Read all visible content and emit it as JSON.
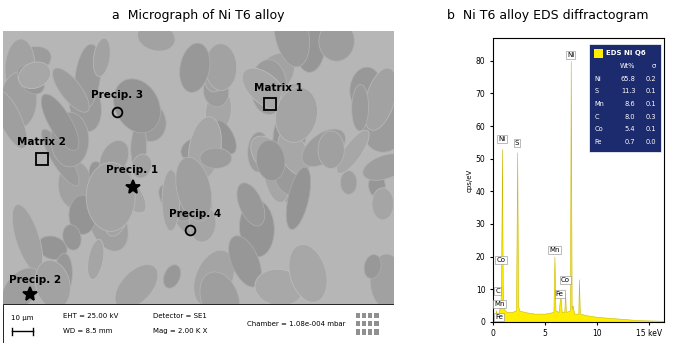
{
  "micrograph": {
    "title": "a  Micrograph of Ni T6 alloy",
    "annotations": [
      {
        "label": "Precip. 3",
        "marker": "circle"
      },
      {
        "label": "Matrix 1",
        "marker": "square"
      },
      {
        "label": "Matrix 2",
        "marker": "square"
      },
      {
        "label": "Precip. 1",
        "marker": "star"
      },
      {
        "label": "Precip. 4",
        "marker": "circle"
      },
      {
        "label": "Precip. 2",
        "marker": "star"
      }
    ],
    "scale_bar": "10 µm",
    "info": [
      "EHT = 25.00 kV",
      "WD = 8.5 mm",
      "Detector = SE1",
      "Mag = 2.00 K X",
      "Chamber = 1.08e-004 mbar"
    ]
  },
  "chart_data": {
    "type": "area",
    "title": "b  Ni T6 alloy EDS diffractogram",
    "ylabel": "cps/eV",
    "x": [
      0.1,
      0.2,
      0.28,
      0.36,
      0.5,
      0.6,
      0.64,
      0.7,
      0.78,
      0.85,
      0.92,
      1.0,
      1.3,
      1.8,
      2.2,
      2.31,
      2.4,
      2.5,
      3.0,
      4.0,
      5.0,
      5.8,
      5.9,
      6.0,
      6.3,
      6.4,
      6.49,
      6.6,
      6.85,
      6.93,
      7.0,
      7.4,
      7.47,
      7.56,
      7.65,
      7.8,
      8.2,
      8.26,
      8.35,
      9.0,
      10.0,
      12.0,
      14.0,
      16.5
    ],
    "values": [
      0,
      2,
      3.5,
      2,
      2.5,
      4,
      5,
      4,
      22,
      53,
      10,
      4,
      3,
      3,
      3.5,
      52,
      5,
      3.5,
      3,
      2.5,
      2.5,
      3,
      20,
      3.5,
      3,
      6,
      8,
      3,
      3,
      9,
      3,
      3.5,
      80,
      4,
      5,
      2.5,
      2.5,
      13,
      2.5,
      2,
      1.5,
      1,
      0.5,
      0.3
    ],
    "color": "#ffee00",
    "xlim": [
      0,
      16.5
    ],
    "ylim": [
      0,
      87
    ],
    "xticks": [
      0,
      5,
      10,
      {
        "value": 15,
        "label": "15 keV"
      }
    ],
    "yticks": [
      0,
      10,
      20,
      30,
      40,
      50,
      60,
      70,
      80
    ],
    "peak_labels": [
      {
        "label": "C",
        "x": 0.45,
        "y": 8.5
      },
      {
        "label": "Mn",
        "x": 0.6,
        "y": 4.5
      },
      {
        "label": "Fe",
        "x": 0.6,
        "y": 0.5
      },
      {
        "label": "Co",
        "x": 0.75,
        "y": 18
      },
      {
        "label": "Ni",
        "x": 0.85,
        "y": 55
      },
      {
        "label": "S",
        "x": 2.31,
        "y": 54
      },
      {
        "label": "Mn",
        "x": 5.9,
        "y": 21
      },
      {
        "label": "Fe",
        "x": 6.4,
        "y": 7.5
      },
      {
        "label": "Co",
        "x": 6.93,
        "y": 12
      },
      {
        "label": "Ni",
        "x": 7.47,
        "y": 81
      }
    ],
    "legend_table": {
      "name": "EDS Ni Q6",
      "header": [
        "Wt%",
        "σ"
      ],
      "rows": [
        [
          "Ni",
          65.8,
          0.2
        ],
        [
          "S",
          11.3,
          0.1
        ],
        [
          "Mn",
          8.6,
          0.1
        ],
        [
          "C",
          8.0,
          0.3
        ],
        [
          "Co",
          5.4,
          0.1
        ],
        [
          "Fe",
          0.7,
          0.0
        ]
      ]
    }
  }
}
